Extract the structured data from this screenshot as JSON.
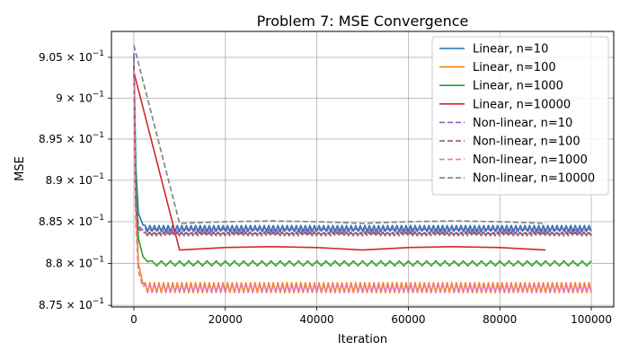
{
  "chart_data": {
    "type": "line",
    "title": "Problem 7: MSE Convergence",
    "xlabel": "Iteration",
    "ylabel": "MSE",
    "xlim": [
      -4900,
      104900
    ],
    "ylim": [
      0.8748,
      0.9082
    ],
    "y_scale": "log",
    "grid": true,
    "legend_position": "top-right",
    "x_ticks": [
      {
        "value": 0,
        "label": "0"
      },
      {
        "value": 20000,
        "label": "20000"
      },
      {
        "value": 40000,
        "label": "40000"
      },
      {
        "value": 60000,
        "label": "60000"
      },
      {
        "value": 80000,
        "label": "80000"
      },
      {
        "value": 100000,
        "label": "100000"
      }
    ],
    "y_ticks": [
      {
        "value": 0.875,
        "mantissa": "8.75",
        "base": "10",
        "exp": "−1"
      },
      {
        "value": 0.88,
        "mantissa": "8.8",
        "base": "10",
        "exp": "−1"
      },
      {
        "value": 0.885,
        "mantissa": "8.85",
        "base": "10",
        "exp": "−1"
      },
      {
        "value": 0.89,
        "mantissa": "8.9",
        "base": "10",
        "exp": "−1"
      },
      {
        "value": 0.895,
        "mantissa": "8.95",
        "base": "10",
        "exp": "−1"
      },
      {
        "value": 0.9,
        "mantissa": "9",
        "base": "10",
        "exp": "−1"
      },
      {
        "value": 0.905,
        "mantissa": "9.05",
        "base": "10",
        "exp": "−1"
      }
    ],
    "series": [
      {
        "name": "Linear, n=10",
        "color": "#1f77b4",
        "dash": "solid",
        "x_max": 100000,
        "points": [
          [
            0,
            0.9055
          ],
          [
            400,
            0.892
          ],
          [
            1000,
            0.886
          ],
          [
            2000,
            0.8846
          ]
        ],
        "plateau": 0.8842,
        "osc_amp": 0.00035,
        "osc_period": 1000
      },
      {
        "name": "Linear, n=100",
        "color": "#ff7f0e",
        "dash": "solid",
        "x_max": 100000,
        "points": [
          [
            0,
            0.9045
          ],
          [
            400,
            0.888
          ],
          [
            1000,
            0.88
          ],
          [
            2000,
            0.8775
          ]
        ],
        "plateau": 0.8771,
        "osc_amp": 0.0006,
        "osc_period": 1000
      },
      {
        "name": "Linear, n=1000",
        "color": "#2ca02c",
        "dash": "solid",
        "x_max": 100000,
        "points": [
          [
            0,
            0.904
          ],
          [
            500,
            0.89
          ],
          [
            1000,
            0.883
          ],
          [
            2000,
            0.8808
          ],
          [
            3000,
            0.8802
          ]
        ],
        "plateau": 0.88,
        "osc_amp": 0.0003,
        "osc_period": 2000
      },
      {
        "name": "Linear, n=10000",
        "color": "#d62728",
        "dash": "solid",
        "x_max": 90000,
        "points": [
          [
            0,
            0.9032
          ],
          [
            10000,
            0.8816
          ],
          [
            20000,
            0.8819
          ],
          [
            30000,
            0.882
          ],
          [
            40000,
            0.8819
          ],
          [
            50000,
            0.8816
          ],
          [
            60000,
            0.8819
          ],
          [
            70000,
            0.882
          ],
          [
            80000,
            0.8819
          ],
          [
            90000,
            0.8816
          ]
        ]
      },
      {
        "name": "Non-linear, n=10",
        "color": "#9467bd",
        "dash": "dashed",
        "x_max": 100000,
        "points": [
          [
            0,
            0.905
          ],
          [
            400,
            0.888
          ],
          [
            1000,
            0.8845
          ],
          [
            2000,
            0.884
          ]
        ],
        "plateau": 0.8838,
        "osc_amp": 0.0005,
        "osc_period": 1000
      },
      {
        "name": "Non-linear, n=100",
        "color": "#8c564b",
        "dash": "dashed",
        "x_max": 100000,
        "points": [
          [
            0,
            0.904
          ],
          [
            400,
            0.887
          ],
          [
            1000,
            0.8842
          ],
          [
            2000,
            0.8837
          ]
        ],
        "plateau": 0.8835,
        "osc_amp": 0.0002,
        "osc_period": 1000
      },
      {
        "name": "Non-linear, n=1000",
        "color": "#e377c2",
        "dash": "dashed",
        "x_max": 100000,
        "points": [
          [
            0,
            0.9035
          ],
          [
            400,
            0.885
          ],
          [
            1000,
            0.879
          ],
          [
            2000,
            0.8772
          ]
        ],
        "plateau": 0.877,
        "osc_amp": 0.00045,
        "osc_period": 1000
      },
      {
        "name": "Non-linear, n=10000",
        "color": "#7f7f7f",
        "dash": "dashed",
        "x_max": 90000,
        "points": [
          [
            0,
            0.9065
          ],
          [
            10000,
            0.8848
          ],
          [
            20000,
            0.885
          ],
          [
            30000,
            0.8851
          ],
          [
            40000,
            0.885
          ],
          [
            50000,
            0.8848
          ],
          [
            60000,
            0.885
          ],
          [
            70000,
            0.8851
          ],
          [
            80000,
            0.885
          ],
          [
            90000,
            0.8848
          ]
        ]
      }
    ]
  }
}
